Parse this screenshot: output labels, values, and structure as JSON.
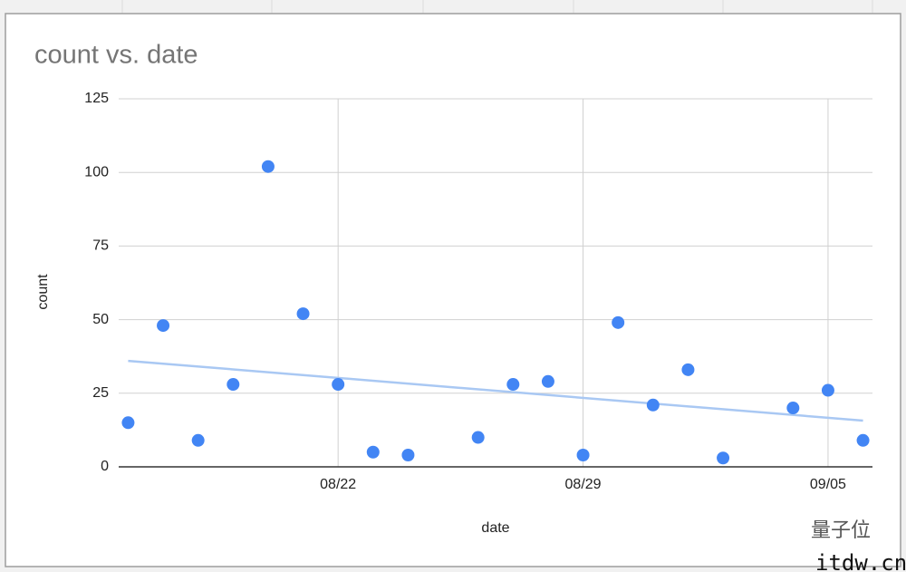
{
  "chart_data": {
    "type": "scatter",
    "title": "count vs. date",
    "x_label": "date",
    "y_label": "count",
    "x": [
      "08/16",
      "08/17",
      "08/18",
      "08/19",
      "08/20",
      "08/21",
      "08/22",
      "08/23",
      "08/24",
      "08/26",
      "08/27",
      "08/28",
      "08/29",
      "08/30",
      "08/31",
      "09/01",
      "09/02",
      "09/04",
      "09/05",
      "09/06"
    ],
    "values": [
      15,
      48,
      9,
      28,
      102,
      52,
      28,
      5,
      4,
      10,
      28,
      29,
      4,
      49,
      21,
      33,
      3,
      20,
      26,
      9
    ],
    "color": "#4285f4",
    "trendline": {
      "x": [
        "08/16",
        "09/06"
      ],
      "values": [
        36,
        15.7
      ],
      "color": "#a9c8f3"
    },
    "xlim": [
      "08/16",
      "09/06"
    ],
    "xticks": [
      "08/22",
      "08/29",
      "09/05"
    ],
    "ylim": [
      0,
      125
    ],
    "yticks": [
      0,
      25,
      50,
      75,
      100,
      125
    ],
    "grid": true,
    "watermark": [
      "量子位",
      "itdw.cn"
    ]
  }
}
